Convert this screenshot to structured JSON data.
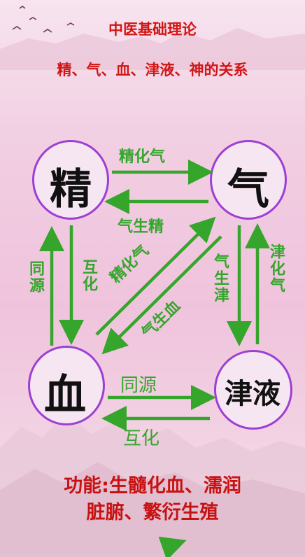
{
  "header": {
    "title": "中医基础理论",
    "subtitle": "精、气、血、津液、神的关系"
  },
  "nodes": {
    "jing": "精",
    "qi": "气",
    "xue": "血",
    "jinye": "津液"
  },
  "arrows": {
    "jing_to_qi": "精化气",
    "qi_to_jing": "气生精",
    "jing_xue_down": "互化",
    "xue_jing_up": "同源",
    "diag_up": "精化气",
    "diag_down": "气生血",
    "qi_jinye_down": "气生津",
    "jinye_qi_up": "津化气",
    "xue_to_jinye": "同源",
    "jinye_to_xue": "互化"
  },
  "footer": {
    "line1": "功能:生髓化血、濡润",
    "line2": "脏腑、繁衍生殖"
  },
  "colors": {
    "title": "#d21616",
    "arrow": "#35a52c",
    "circle": "#9d3fd4"
  }
}
